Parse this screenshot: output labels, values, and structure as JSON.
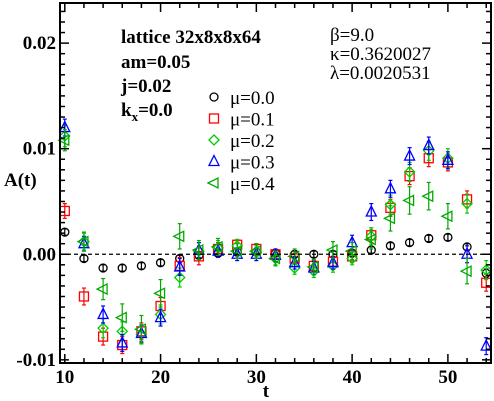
{
  "chart_data": {
    "type": "scatter",
    "xlabel": "t",
    "ylabel": "A(t)",
    "xlim": [
      9.5,
      54.5
    ],
    "ylim": [
      -0.0103,
      0.0238
    ],
    "x_ticks": [
      10,
      20,
      30,
      40,
      50
    ],
    "x_tick_labels": [
      "10",
      "20",
      "30",
      "40",
      "50"
    ],
    "y_ticks": [
      -0.01,
      0.0,
      0.01,
      0.02
    ],
    "y_tick_labels": [
      "-0.01",
      "0.00",
      "0.01",
      "0.02"
    ],
    "grid": false,
    "reference_line": {
      "y": 0.0,
      "style": "dashed"
    },
    "annotations": {
      "left": [
        "lattice 32x8x8x64",
        "am=0.05",
        "j=0.02"
      ],
      "kx": {
        "base": "k",
        "sub": "x",
        "rest": "=0.0"
      },
      "right": [
        "β=9.0",
        "κ=0.3620027",
        "λ=0.0020531"
      ]
    },
    "legend_position": "center",
    "series": [
      {
        "name": "μ=0.0",
        "marker": "circle",
        "color": "#000000",
        "points": [
          [
            10,
            0.0021,
            0.0003
          ],
          [
            12,
            -0.0004,
            0.0003
          ],
          [
            14,
            -0.0013,
            0.0003
          ],
          [
            16,
            -0.0013,
            0.0003
          ],
          [
            18,
            -0.0011,
            0.0003
          ],
          [
            20,
            -0.0008,
            0.0003
          ],
          [
            22,
            -0.0004,
            0.0003
          ],
          [
            24,
            -0.0001,
            0.0003
          ],
          [
            26,
            0.0001,
            0.0003
          ],
          [
            28,
            0.0002,
            0.0003
          ],
          [
            30,
            0.0002,
            0.0003
          ],
          [
            32,
            0.0001,
            0.0003
          ],
          [
            34,
            0.0,
            0.0003
          ],
          [
            36,
            0.0,
            0.0003
          ],
          [
            38,
            0.0,
            0.0003
          ],
          [
            40,
            0.0001,
            0.0003
          ],
          [
            42,
            0.0004,
            0.0003
          ],
          [
            44,
            0.0008,
            0.0003
          ],
          [
            46,
            0.0011,
            0.0003
          ],
          [
            48,
            0.0015,
            0.0003
          ],
          [
            50,
            0.0016,
            0.0003
          ],
          [
            52,
            0.0007,
            0.0003
          ],
          [
            54,
            -0.0018,
            0.0004
          ]
        ]
      },
      {
        "name": "μ=0.1",
        "marker": "square",
        "color": "#ff0000",
        "points": [
          [
            10,
            0.0041,
            0.0007
          ],
          [
            12,
            -0.004,
            0.0008
          ],
          [
            14,
            -0.0078,
            0.0008
          ],
          [
            16,
            -0.0086,
            0.0008
          ],
          [
            18,
            -0.0073,
            0.0008
          ],
          [
            20,
            -0.0049,
            0.0008
          ],
          [
            22,
            -0.0011,
            0.0008
          ],
          [
            24,
            -0.0002,
            0.0008
          ],
          [
            26,
            0.0005,
            0.0006
          ],
          [
            28,
            0.0009,
            0.0005
          ],
          [
            30,
            0.0005,
            0.0005
          ],
          [
            32,
            0.0,
            0.0005
          ],
          [
            34,
            -0.0004,
            0.0005
          ],
          [
            36,
            -0.0011,
            0.0005
          ],
          [
            38,
            -0.0007,
            0.0005
          ],
          [
            40,
            -0.0002,
            0.0006
          ],
          [
            42,
            0.0018,
            0.0007
          ],
          [
            44,
            0.0044,
            0.0008
          ],
          [
            46,
            0.0074,
            0.0008
          ],
          [
            48,
            0.0091,
            0.0008
          ],
          [
            50,
            0.0087,
            0.0008
          ],
          [
            52,
            0.0052,
            0.0008
          ],
          [
            54,
            -0.0027,
            0.0008
          ]
        ]
      },
      {
        "name": "μ=0.2",
        "marker": "diamond",
        "color": "#00cc00",
        "points": [
          [
            10,
            0.0112,
            0.001
          ],
          [
            12,
            0.0012,
            0.0008
          ],
          [
            14,
            -0.007,
            0.0009
          ],
          [
            16,
            -0.0073,
            0.0009
          ],
          [
            18,
            -0.0076,
            0.0009
          ],
          [
            20,
            -0.0057,
            0.0009
          ],
          [
            22,
            -0.0022,
            0.0009
          ],
          [
            24,
            0.0003,
            0.0008
          ],
          [
            26,
            0.0006,
            0.0007
          ],
          [
            28,
            0.0008,
            0.0006
          ],
          [
            30,
            0.0002,
            0.0006
          ],
          [
            32,
            -0.0004,
            0.0006
          ],
          [
            34,
            -0.0013,
            0.0006
          ],
          [
            36,
            -0.0016,
            0.0006
          ],
          [
            38,
            -0.0011,
            0.0006
          ],
          [
            40,
            -0.0004,
            0.0006
          ],
          [
            42,
            0.0017,
            0.0008
          ],
          [
            44,
            0.0047,
            0.0009
          ],
          [
            46,
            0.0078,
            0.0009
          ],
          [
            48,
            0.0098,
            0.0009
          ],
          [
            50,
            0.0091,
            0.0009
          ],
          [
            52,
            0.0048,
            0.0009
          ],
          [
            54,
            -0.0015,
            0.0009
          ]
        ]
      },
      {
        "name": "μ=0.3",
        "marker": "triangle-up",
        "color": "#0000ff",
        "points": [
          [
            10,
            0.012,
            0.0008
          ],
          [
            12,
            0.001,
            0.0007
          ],
          [
            14,
            -0.0057,
            0.0008
          ],
          [
            16,
            -0.0084,
            0.0008
          ],
          [
            18,
            -0.0075,
            0.0008
          ],
          [
            20,
            -0.006,
            0.0008
          ],
          [
            22,
            -0.0012,
            0.0008
          ],
          [
            24,
            0.0004,
            0.0007
          ],
          [
            26,
            0.0003,
            0.0006
          ],
          [
            28,
            0.0,
            0.0006
          ],
          [
            30,
            0.0,
            0.0006
          ],
          [
            32,
            -0.0001,
            0.0006
          ],
          [
            34,
            -0.0008,
            0.0006
          ],
          [
            36,
            -0.0013,
            0.0006
          ],
          [
            38,
            -0.0008,
            0.0006
          ],
          [
            40,
            0.0011,
            0.0007
          ],
          [
            42,
            0.004,
            0.0008
          ],
          [
            44,
            0.0062,
            0.0008
          ],
          [
            46,
            0.0093,
            0.0008
          ],
          [
            48,
            0.0103,
            0.0008
          ],
          [
            50,
            0.0089,
            0.0008
          ],
          [
            52,
            0.0,
            0.0008
          ],
          [
            54,
            -0.0087,
            0.0008
          ]
        ]
      },
      {
        "name": "μ=0.4",
        "marker": "triangle-left",
        "color": "#00aa00",
        "points": [
          [
            10,
            0.0108,
            0.001
          ],
          [
            12,
            0.0012,
            0.0009
          ],
          [
            14,
            -0.0033,
            0.001
          ],
          [
            16,
            -0.006,
            0.0013
          ],
          [
            18,
            -0.0071,
            0.0013
          ],
          [
            20,
            -0.0037,
            0.0013
          ],
          [
            22,
            0.0017,
            0.0012
          ],
          [
            24,
            0.0004,
            0.0009
          ],
          [
            26,
            0.0007,
            0.0008
          ],
          [
            28,
            0.0003,
            0.0007
          ],
          [
            30,
            0.0003,
            0.0007
          ],
          [
            32,
            -0.0004,
            0.0007
          ],
          [
            34,
            -0.0002,
            0.0007
          ],
          [
            36,
            -0.0012,
            0.0007
          ],
          [
            38,
            0.0004,
            0.0008
          ],
          [
            40,
            0.0003,
            0.0008
          ],
          [
            42,
            0.0014,
            0.0009
          ],
          [
            44,
            0.0034,
            0.0012
          ],
          [
            46,
            0.0051,
            0.0013
          ],
          [
            48,
            0.0055,
            0.0013
          ],
          [
            50,
            0.0036,
            0.0012
          ],
          [
            52,
            -0.0016,
            0.0012
          ],
          [
            54,
            0.0,
            0.0
          ]
        ]
      }
    ]
  }
}
